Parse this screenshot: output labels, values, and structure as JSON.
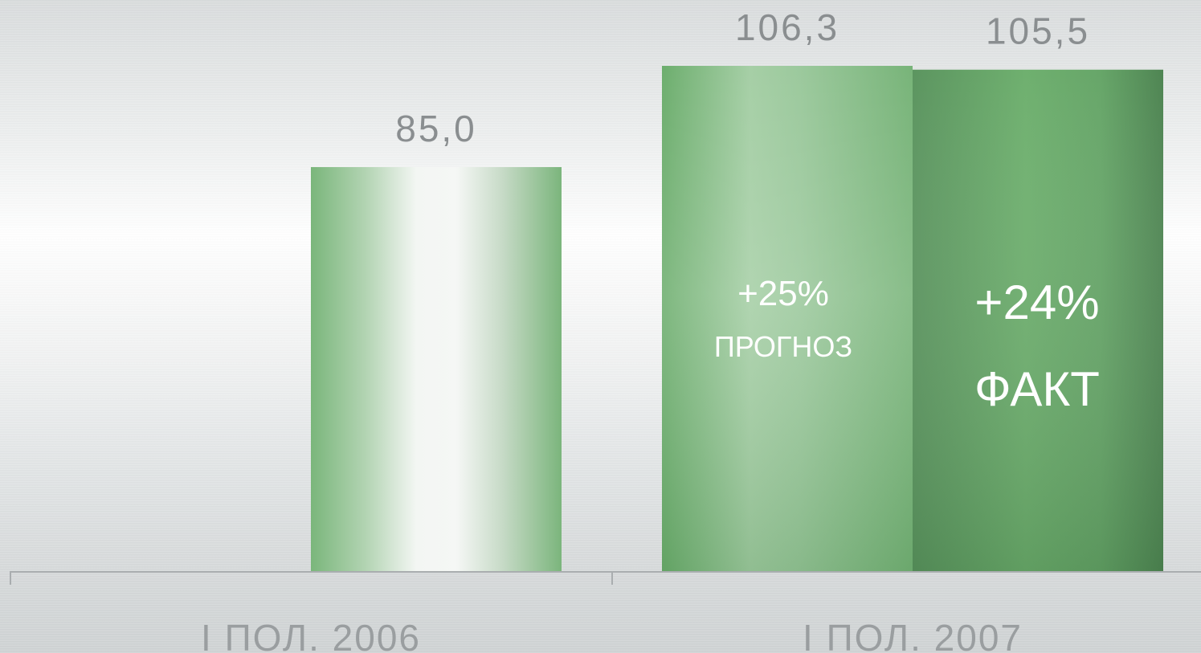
{
  "chart_data": {
    "type": "bar",
    "categories": [
      "I ПОЛ. 2006",
      "I ПОЛ. 2007"
    ],
    "series": [
      {
        "values": [
          85.0,
          106.3
        ]
      },
      {
        "values": [
          null,
          105.5
        ]
      }
    ],
    "data_labels": [
      "85,0",
      "106,3",
      "105,5"
    ],
    "annotations": [
      {
        "percent": "+25%",
        "label": "ПРОГНОЗ"
      },
      {
        "percent": "+24%",
        "label": "ФАКТ"
      }
    ],
    "ylim": [
      0,
      106.3
    ],
    "grid": false,
    "colors": {
      "bar_2006": "#7ab67b",
      "bar_2007_forecast": "#6aad6c",
      "bar_2007_fact": "#55955a",
      "axis": "#a9adaf",
      "value_label": "#8a8e90",
      "category_label": "#9a9ea0"
    }
  }
}
